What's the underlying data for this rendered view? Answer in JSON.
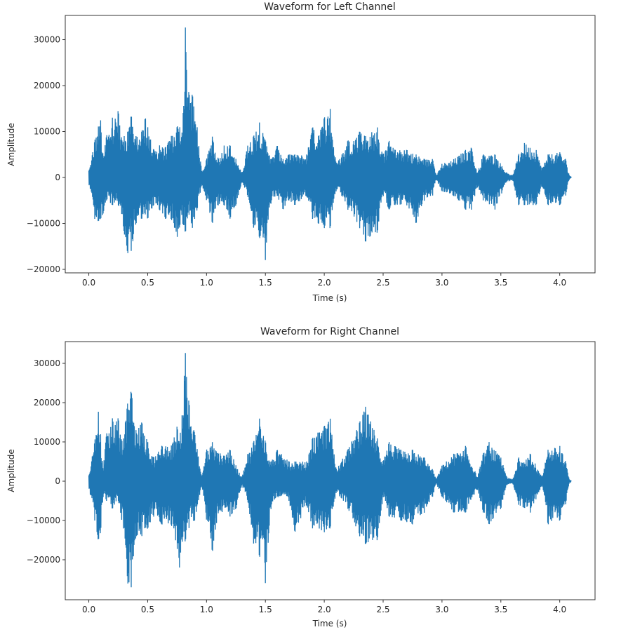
{
  "chart_data": [
    {
      "type": "line",
      "title": "Waveform for Left Channel",
      "xlabel": "Time (s)",
      "ylabel": "Amplitude",
      "xlim": [
        -0.2,
        4.3
      ],
      "ylim": [
        -20760,
        35270
      ],
      "xticks": [
        "0.0",
        "0.5",
        "1.0",
        "1.5",
        "2.0",
        "2.5",
        "3.0",
        "3.5",
        "4.0"
      ],
      "yticks": [
        "−20000",
        "−10000",
        "0",
        "10000",
        "20000",
        "30000"
      ],
      "ytick_values": [
        -20000,
        -10000,
        0,
        10000,
        20000,
        30000
      ],
      "color": "#1f77b4",
      "envelope_note": "[time_s, max_amplitude, min_amplitude]",
      "envelope": [
        [
          0.0,
          1500,
          -1500
        ],
        [
          0.03,
          5000,
          -4000
        ],
        [
          0.05,
          8000,
          -9000
        ],
        [
          0.08,
          11000,
          -9500
        ],
        [
          0.1,
          12500,
          -9000
        ],
        [
          0.12,
          5000,
          -8000
        ],
        [
          0.15,
          9000,
          -5000
        ],
        [
          0.2,
          13000,
          -6000
        ],
        [
          0.25,
          14500,
          -6000
        ],
        [
          0.28,
          8000,
          -8000
        ],
        [
          0.3,
          9000,
          -12000
        ],
        [
          0.33,
          10000,
          -16500
        ],
        [
          0.36,
          13500,
          -16000
        ],
        [
          0.4,
          9000,
          -10000
        ],
        [
          0.45,
          10000,
          -9000
        ],
        [
          0.48,
          13000,
          -8000
        ],
        [
          0.5,
          11000,
          -9000
        ],
        [
          0.55,
          6000,
          -6000
        ],
        [
          0.6,
          7000,
          -7000
        ],
        [
          0.65,
          6500,
          -9000
        ],
        [
          0.7,
          9000,
          -9000
        ],
        [
          0.75,
          11000,
          -13000
        ],
        [
          0.8,
          13000,
          -10000
        ],
        [
          0.82,
          32700,
          -12000
        ],
        [
          0.85,
          18000,
          -8000
        ],
        [
          0.88,
          18000,
          -11000
        ],
        [
          0.92,
          11000,
          -7000
        ],
        [
          0.96,
          1000,
          -1500
        ],
        [
          1.0,
          4000,
          -5000
        ],
        [
          1.05,
          9000,
          -10000
        ],
        [
          1.1,
          4000,
          -6000
        ],
        [
          1.15,
          7000,
          -6000
        ],
        [
          1.2,
          7000,
          -9000
        ],
        [
          1.25,
          4000,
          -6000
        ],
        [
          1.3,
          1000,
          -1000
        ],
        [
          1.35,
          7000,
          -4000
        ],
        [
          1.4,
          9000,
          -11000
        ],
        [
          1.45,
          12000,
          -13000
        ],
        [
          1.5,
          8000,
          -18000
        ],
        [
          1.55,
          4000,
          -5000
        ],
        [
          1.6,
          7000,
          -4000
        ],
        [
          1.65,
          4000,
          -7000
        ],
        [
          1.7,
          5000,
          -5000
        ],
        [
          1.75,
          5000,
          -6000
        ],
        [
          1.85,
          5000,
          -4000
        ],
        [
          1.9,
          11000,
          -9000
        ],
        [
          1.95,
          9000,
          -10000
        ],
        [
          2.0,
          13000,
          -11000
        ],
        [
          2.05,
          15000,
          -11000
        ],
        [
          2.1,
          3000,
          -3000
        ],
        [
          2.15,
          5000,
          -4000
        ],
        [
          2.2,
          8000,
          -7000
        ],
        [
          2.3,
          10000,
          -11000
        ],
        [
          2.35,
          9000,
          -14000
        ],
        [
          2.45,
          11000,
          -12000
        ],
        [
          2.5,
          5000,
          -4000
        ],
        [
          2.55,
          8000,
          -7000
        ],
        [
          2.6,
          6000,
          -6000
        ],
        [
          2.7,
          6000,
          -6000
        ],
        [
          2.78,
          5000,
          -10000
        ],
        [
          2.85,
          4000,
          -5000
        ],
        [
          2.92,
          4000,
          -4000
        ],
        [
          2.95,
          500,
          -500
        ],
        [
          3.0,
          3000,
          -3000
        ],
        [
          3.1,
          4000,
          -4000
        ],
        [
          3.2,
          6000,
          -7000
        ],
        [
          3.25,
          6500,
          -7000
        ],
        [
          3.3,
          1000,
          -2000
        ],
        [
          3.35,
          5000,
          -5000
        ],
        [
          3.45,
          5000,
          -7000
        ],
        [
          3.55,
          1000,
          -1000
        ],
        [
          3.6,
          500,
          -500
        ],
        [
          3.65,
          5000,
          -6000
        ],
        [
          3.7,
          7500,
          -6000
        ],
        [
          3.8,
          6000,
          -6000
        ],
        [
          3.85,
          2000,
          -2000
        ],
        [
          3.9,
          5000,
          -6000
        ],
        [
          4.0,
          5500,
          -6000
        ],
        [
          4.05,
          4000,
          -4000
        ],
        [
          4.08,
          500,
          -500
        ],
        [
          4.1,
          0,
          0
        ]
      ]
    },
    {
      "type": "line",
      "title": "Waveform for Right Channel",
      "xlabel": "Time (s)",
      "ylabel": "Amplitude",
      "xlim": [
        -0.2,
        4.3
      ],
      "ylim": [
        -30180,
        35540
      ],
      "xticks": [
        "0.0",
        "0.5",
        "1.0",
        "1.5",
        "2.0",
        "2.5",
        "3.0",
        "3.5",
        "4.0"
      ],
      "yticks": [
        "−20000",
        "−10000",
        "0",
        "10000",
        "20000",
        "30000"
      ],
      "ytick_values": [
        -20000,
        -10000,
        0,
        10000,
        20000,
        30000
      ],
      "color": "#1f77b4",
      "envelope_note": "[time_s, max_amplitude, min_amplitude]",
      "envelope": [
        [
          0.0,
          1500,
          -1500
        ],
        [
          0.05,
          10000,
          -10000
        ],
        [
          0.08,
          18000,
          -15000
        ],
        [
          0.1,
          12000,
          -13000
        ],
        [
          0.12,
          3000,
          -4000
        ],
        [
          0.15,
          12000,
          -5000
        ],
        [
          0.2,
          16000,
          -7000
        ],
        [
          0.25,
          16000,
          -5000
        ],
        [
          0.28,
          10000,
          -10000
        ],
        [
          0.31,
          15000,
          -15000
        ],
        [
          0.33,
          20000,
          -26000
        ],
        [
          0.36,
          23000,
          -27000
        ],
        [
          0.4,
          13000,
          -14000
        ],
        [
          0.45,
          15000,
          -14000
        ],
        [
          0.5,
          10000,
          -12000
        ],
        [
          0.55,
          6000,
          -9000
        ],
        [
          0.62,
          9000,
          -11000
        ],
        [
          0.7,
          9000,
          -11000
        ],
        [
          0.75,
          14000,
          -17000
        ],
        [
          0.77,
          9000,
          -22000
        ],
        [
          0.82,
          32700,
          -15000
        ],
        [
          0.85,
          20000,
          -12000
        ],
        [
          0.9,
          12000,
          -10000
        ],
        [
          0.96,
          1000,
          -1000
        ],
        [
          1.0,
          8000,
          -10000
        ],
        [
          1.05,
          10000,
          -18000
        ],
        [
          1.1,
          7000,
          -8000
        ],
        [
          1.2,
          8000,
          -9000
        ],
        [
          1.25,
          4000,
          -7000
        ],
        [
          1.3,
          1000,
          -1000
        ],
        [
          1.35,
          7000,
          -5000
        ],
        [
          1.4,
          10000,
          -16000
        ],
        [
          1.45,
          16000,
          -19000
        ],
        [
          1.5,
          10000,
          -26000
        ],
        [
          1.55,
          5000,
          -6000
        ],
        [
          1.6,
          8000,
          -4000
        ],
        [
          1.7,
          5000,
          -5000
        ],
        [
          1.75,
          5000,
          -13000
        ],
        [
          1.85,
          5000,
          -6000
        ],
        [
          1.9,
          11000,
          -12000
        ],
        [
          2.0,
          14000,
          -13000
        ],
        [
          2.05,
          16000,
          -12000
        ],
        [
          2.1,
          3000,
          -3000
        ],
        [
          2.2,
          8000,
          -7000
        ],
        [
          2.3,
          15000,
          -14000
        ],
        [
          2.35,
          19000,
          -16000
        ],
        [
          2.45,
          11000,
          -15000
        ],
        [
          2.5,
          5000,
          -4000
        ],
        [
          2.55,
          10000,
          -9000
        ],
        [
          2.65,
          8000,
          -10000
        ],
        [
          2.75,
          8000,
          -11000
        ],
        [
          2.85,
          6000,
          -8000
        ],
        [
          2.92,
          3000,
          -4000
        ],
        [
          2.95,
          500,
          -500
        ],
        [
          3.0,
          4000,
          -4000
        ],
        [
          3.1,
          7000,
          -8000
        ],
        [
          3.2,
          9000,
          -8000
        ],
        [
          3.3,
          1000,
          -2000
        ],
        [
          3.35,
          7000,
          -8000
        ],
        [
          3.4,
          10000,
          -11000
        ],
        [
          3.5,
          6000,
          -7000
        ],
        [
          3.55,
          1000,
          -1000
        ],
        [
          3.6,
          500,
          -500
        ],
        [
          3.65,
          6000,
          -6000
        ],
        [
          3.75,
          7000,
          -8000
        ],
        [
          3.85,
          1000,
          -1000
        ],
        [
          3.9,
          8000,
          -11000
        ],
        [
          4.0,
          9000,
          -10000
        ],
        [
          4.05,
          5000,
          -6000
        ],
        [
          4.08,
          500,
          -500
        ],
        [
          4.1,
          0,
          0
        ]
      ]
    }
  ]
}
